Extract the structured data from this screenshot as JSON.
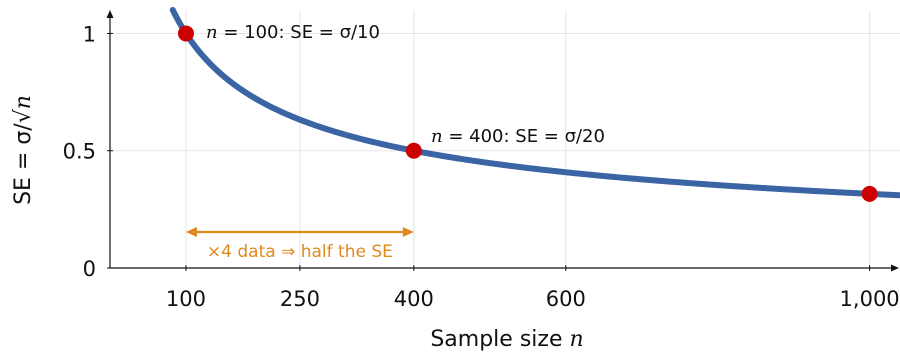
{
  "chart_data": {
    "type": "line",
    "function": "1/sqrt(n/100)",
    "xlim": [
      0,
      1040
    ],
    "ylim": [
      0,
      1.1
    ],
    "xticks": [
      100,
      250,
      400,
      600,
      1000
    ],
    "xtick_labels": [
      "100",
      "250",
      "400",
      "600",
      "1,000"
    ],
    "yticks": [
      0,
      0.5,
      1
    ],
    "ytick_labels": [
      "0",
      "0.5",
      "1"
    ],
    "xlabel": {
      "text": "Sample size ",
      "var": "n"
    },
    "ylabel": {
      "text": "SE = σ/√",
      "var": "n"
    },
    "grid": true,
    "line_color": "#3a64a4",
    "point_color": "#cc0000",
    "highlight_points": [
      {
        "x": 100,
        "y": 1.0
      },
      {
        "x": 400,
        "y": 0.5
      },
      {
        "x": 1000,
        "y": 0.316
      }
    ],
    "annotations": [
      {
        "var": "n",
        "text": " = 100:  SE = σ/10"
      },
      {
        "var": "n",
        "text": " = 400:  SE = σ/20"
      }
    ],
    "bracket": {
      "from": 100,
      "to": 400,
      "label": "×4 data ⇒ half the SE",
      "color": "#e08a1e"
    }
  }
}
